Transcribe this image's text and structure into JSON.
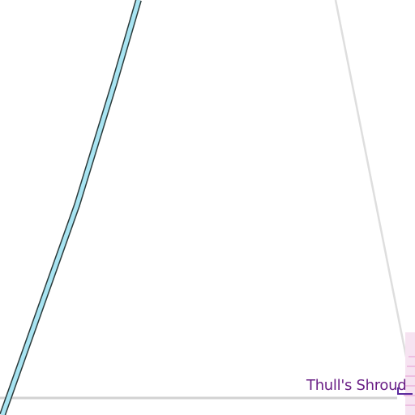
{
  "map": {
    "place_label": "Thull's Shroud",
    "colors": {
      "background": "#ffffff",
      "river_fill": "#a8e4f2",
      "river_outline": "#2b3a3a",
      "road": "#d2d2d2",
      "boundary_line": "#dedede",
      "label": "#6a1f86",
      "label_marker": "#5b2a9e",
      "area_tint": "#e8a8d8"
    }
  }
}
